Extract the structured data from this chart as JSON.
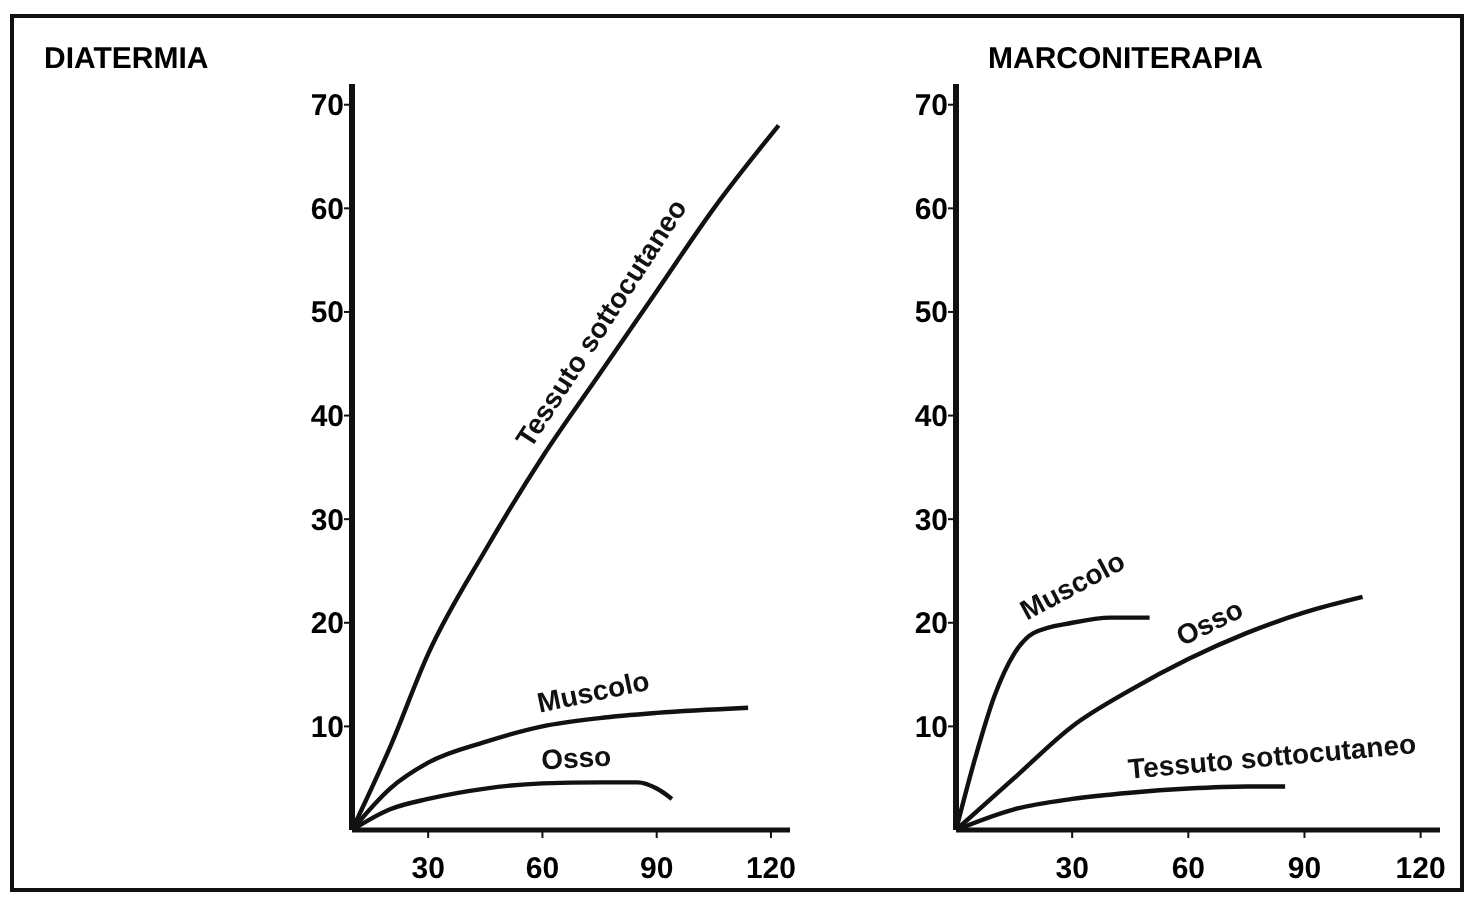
{
  "chart_data": [
    {
      "type": "line",
      "title": "DIATERMIA",
      "xlim": [
        10,
        125
      ],
      "ylim": [
        0,
        72
      ],
      "xticks": [
        30,
        60,
        90,
        120
      ],
      "yticks": [
        10,
        20,
        30,
        40,
        50,
        60,
        70
      ],
      "grid": false,
      "marker": "none",
      "line_style": "solid",
      "series": [
        {
          "name": "Tessuto sottocutaneo",
          "color": "#111111",
          "x": [
            10,
            20,
            30,
            45,
            60,
            75,
            90,
            105,
            122
          ],
          "values": [
            0,
            8,
            17,
            27,
            36,
            44,
            52,
            60,
            68
          ]
        },
        {
          "name": "Muscolo",
          "color": "#111111",
          "x": [
            10,
            20,
            30,
            45,
            60,
            75,
            90,
            114
          ],
          "values": [
            0,
            4,
            6.5,
            8.5,
            10,
            10.8,
            11.3,
            11.8
          ]
        },
        {
          "name": "Osso",
          "color": "#111111",
          "x": [
            10,
            20,
            30,
            45,
            60,
            75,
            85,
            90,
            94
          ],
          "values": [
            0,
            2,
            3,
            4,
            4.5,
            4.6,
            4.6,
            4,
            3
          ]
        }
      ]
    },
    {
      "type": "line",
      "title": "MARCONITERAPIA",
      "xlim": [
        0,
        125
      ],
      "ylim": [
        0,
        72
      ],
      "xticks": [
        30,
        60,
        90,
        120
      ],
      "yticks": [
        10,
        20,
        30,
        40,
        50,
        60,
        70
      ],
      "grid": false,
      "marker": "none",
      "line_style": "solid",
      "series": [
        {
          "name": "Muscolo",
          "color": "#111111",
          "x": [
            0,
            5,
            10,
            15,
            20,
            30,
            40,
            50
          ],
          "values": [
            0,
            7,
            13,
            17,
            19,
            20,
            20.5,
            20.5
          ]
        },
        {
          "name": "Osso",
          "color": "#111111",
          "x": [
            0,
            15,
            30,
            45,
            60,
            75,
            90,
            105
          ],
          "values": [
            0,
            5,
            10,
            13.5,
            16.5,
            19,
            21,
            22.5
          ]
        },
        {
          "name": "Tessuto sottocutaneo",
          "color": "#111111",
          "x": [
            0,
            15,
            30,
            45,
            60,
            75,
            85
          ],
          "values": [
            0,
            2,
            3,
            3.6,
            4,
            4.2,
            4.2
          ]
        }
      ]
    }
  ]
}
